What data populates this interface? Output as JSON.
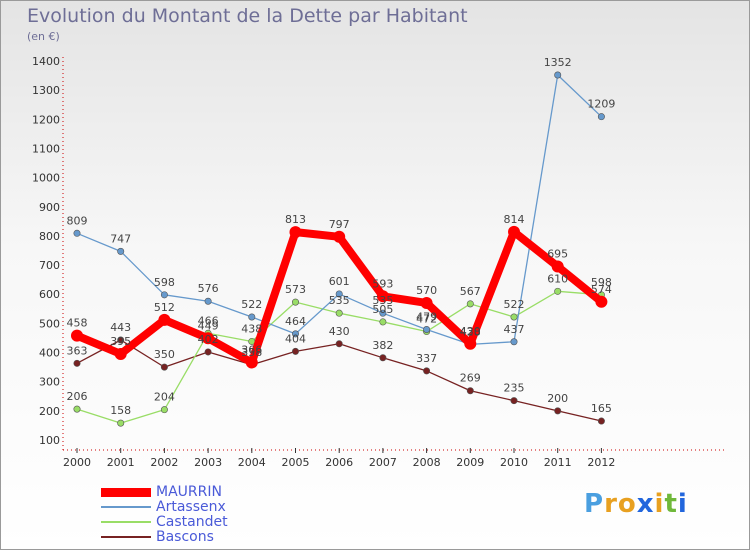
{
  "chart_data": {
    "type": "line",
    "title": "Evolution du Montant de la Dette par Habitant",
    "subtitle": "(en €)",
    "xlabel": "",
    "ylabel": "",
    "x": [
      "2000",
      "2001",
      "2002",
      "2003",
      "2004",
      "2005",
      "2006",
      "2007",
      "2008",
      "2009",
      "2010",
      "2011",
      "2012"
    ],
    "ylim": [
      100,
      1400
    ],
    "yticks": [
      "100",
      "200",
      "300",
      "400",
      "500",
      "600",
      "700",
      "800",
      "900",
      "1000",
      "1100",
      "1200",
      "1300",
      "1400"
    ],
    "grid": false,
    "legend_position": "bottom-left",
    "series": [
      {
        "name": "MAURRIN",
        "color": "#ff0000",
        "values": [
          458,
          395,
          512,
          449,
          366,
          813,
          797,
          593,
          570,
          430,
          814,
          695,
          574
        ]
      },
      {
        "name": "Artassenx",
        "color": "#6699cc",
        "values": [
          809,
          747,
          598,
          576,
          522,
          464,
          601,
          535,
          479,
          428,
          437,
          1352,
          1209
        ]
      },
      {
        "name": "Castandet",
        "color": "#99dd66",
        "values": [
          206,
          158,
          204,
          466,
          438,
          573,
          535,
          505,
          472,
          567,
          522,
          610,
          598
        ]
      },
      {
        "name": "Bascons",
        "color": "#772222",
        "values": [
          363,
          443,
          350,
          402,
          358,
          404,
          430,
          382,
          337,
          269,
          235,
          200,
          165
        ]
      }
    ]
  },
  "logo": {
    "letters": [
      "P",
      "r",
      "o",
      "x",
      "i",
      "t",
      "i"
    ],
    "colors": [
      "#4a9fe0",
      "#e8a020",
      "#e8a020",
      "#2266dd",
      "#e8a020",
      "#6fb83a",
      "#2266dd"
    ]
  }
}
